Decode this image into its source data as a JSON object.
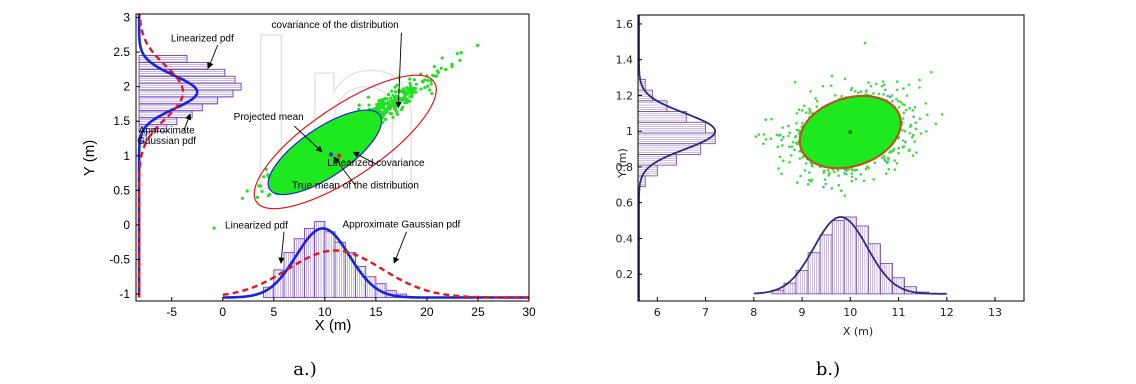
{
  "watermark": "In",
  "chart_data": [
    {
      "type": "scatter",
      "panel_label": "a.)",
      "xlabel": "X (m)",
      "ylabel": "Y (m)",
      "xlim": [
        -8.5,
        30
      ],
      "ylim": [
        -1.1,
        3.05
      ],
      "xticks": [
        -5,
        0,
        5,
        10,
        15,
        20,
        25,
        30
      ],
      "yticks": [
        -1,
        -0.5,
        0,
        0.5,
        1,
        1.5,
        2,
        2.5,
        3
      ],
      "grid": false,
      "series": [
        {
          "name": "Linearized pdf",
          "style": "solid",
          "color": "#1a24d8",
          "axis": "x",
          "mean": 9.8,
          "sd": 2.6,
          "peak": -0.05,
          "base": -1.05
        },
        {
          "name": "Approximate Gaussian pdf",
          "style": "dashed",
          "color": "#e8141b",
          "axis": "x",
          "mean": 11.0,
          "sd": 4.6,
          "peak": -0.37,
          "base": -1.05
        },
        {
          "name": "Linearized pdf",
          "style": "solid",
          "color": "#1a24d8",
          "axis": "y",
          "mean": 1.92,
          "sd": 0.24,
          "peak": -2.5,
          "base": -8.2
        },
        {
          "name": "Approximate Gaussian pdf",
          "style": "dashed",
          "color": "#e8141b",
          "axis": "y",
          "mean": 1.92,
          "sd": 0.38,
          "peak": -3.9,
          "base": -8.2
        }
      ],
      "x_histogram": {
        "bins": [
          4.5,
          5.5,
          6.5,
          7.5,
          8.5,
          9.5,
          10.5,
          11.5,
          12.5,
          13.5,
          14.5,
          15.5,
          16.5,
          17.5
        ],
        "heights": [
          -0.9,
          -0.65,
          -0.4,
          -0.2,
          -0.05,
          0.05,
          -0.1,
          -0.25,
          -0.4,
          -0.6,
          -0.75,
          -0.85,
          -0.95,
          -1.0
        ],
        "base": -1.05
      },
      "y_histogram": {
        "bins": [
          1.25,
          1.4,
          1.5,
          1.6,
          1.7,
          1.8,
          1.9,
          2.0,
          2.1,
          2.2,
          2.3,
          2.4
        ],
        "widths": [
          -7.5,
          -5.5,
          -4.5,
          -3.0,
          -2.0,
          -0.5,
          1.0,
          1.8,
          1.2,
          0.2,
          -1.5,
          -3.5
        ],
        "base": -8.2
      },
      "ellipses": [
        {
          "name": "covariance of the distribution",
          "cx": 12.0,
          "cy": 1.2,
          "rx": 10.5,
          "ry": 0.16,
          "angle_deg": -34,
          "color": "#e8141b"
        },
        {
          "name": "Linearized covariance",
          "cx": 10.0,
          "cy": 1.05,
          "rx": 6.5,
          "ry": 0.11,
          "angle_deg": -34,
          "color": "#1a24d8",
          "fill": "#1ee81e"
        }
      ],
      "annotations": [
        {
          "text": "Linearized pdf",
          "x": -2.0,
          "y": 2.65
        },
        {
          "text": "covariance of the distribution",
          "x": 11.0,
          "y": 2.85
        },
        {
          "text": "Projected mean",
          "x": 4.5,
          "y": 1.52
        },
        {
          "text": "Linearized covariance",
          "x": 15.0,
          "y": 0.85
        },
        {
          "text": "Approximate",
          "x": -5.5,
          "y": 1.32
        },
        {
          "text": "Gaussian pdf",
          "x": -5.5,
          "y": 1.17
        },
        {
          "text": "True mean of the distribution",
          "x": 13.0,
          "y": 0.53
        },
        {
          "text": "Linearized pdf",
          "x": 3.3,
          "y": -0.05
        },
        {
          "text": "Approximate Gaussian pdf",
          "x": 17.5,
          "y": -0.04
        }
      ]
    },
    {
      "type": "scatter",
      "panel_label": "b.)",
      "xlabel": "X (m)",
      "ylabel": "Y (m)",
      "xlim": [
        5.6,
        13.6
      ],
      "ylim": [
        0.05,
        1.65
      ],
      "xticks": [
        6,
        7,
        8,
        9,
        10,
        11,
        12,
        13
      ],
      "yticks": [
        0.2,
        0.4,
        0.6,
        0.8,
        1,
        1.2,
        1.4,
        1.6
      ],
      "grid": false,
      "x_histogram": {
        "bins": [
          8.5,
          8.75,
          9.0,
          9.25,
          9.5,
          9.75,
          10.0,
          10.25,
          10.5,
          10.75,
          11.0,
          11.25,
          11.5,
          11.75
        ],
        "heights": [
          0.11,
          0.15,
          0.22,
          0.32,
          0.42,
          0.5,
          0.52,
          0.47,
          0.37,
          0.26,
          0.18,
          0.13,
          0.1,
          0.09
        ],
        "base": 0.09
      },
      "y_histogram": {
        "bins": [
          0.72,
          0.78,
          0.84,
          0.9,
          0.96,
          1.02,
          1.08,
          1.14,
          1.2,
          1.26
        ],
        "widths": [
          5.75,
          6.0,
          6.4,
          6.9,
          7.2,
          7.0,
          6.6,
          6.2,
          5.9,
          5.75
        ],
        "base": 5.6
      },
      "ellipse": {
        "cx": 10.0,
        "cy": 0.995,
        "rx": 1.15,
        "ry": 0.13,
        "angle_deg": -18,
        "color": "#b3581a",
        "fill": "#1ee81e"
      },
      "curves": {
        "x_mean": 9.8,
        "x_sd": 0.55,
        "x_peak": 0.52,
        "x_base": 0.09,
        "y_mean": 1.0,
        "y_sd": 0.1,
        "y_peak": 7.2,
        "y_base": 5.62,
        "color": "#2c2c7a"
      }
    }
  ]
}
